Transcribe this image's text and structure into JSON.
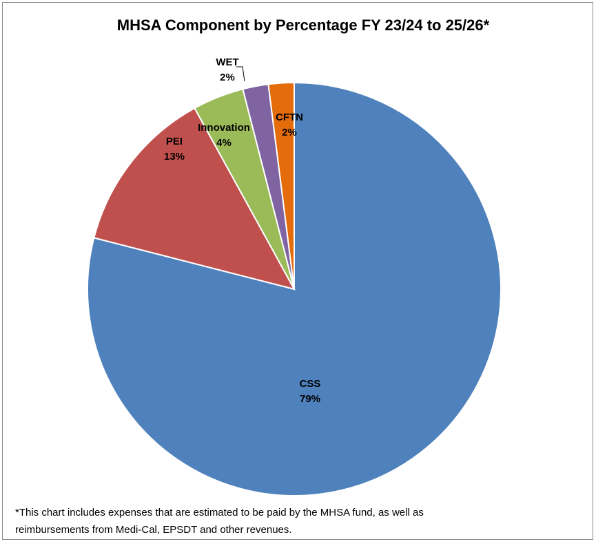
{
  "chart_data": {
    "type": "pie",
    "title": "MHSA Component by Percentage FY 23/24 to 25/26*",
    "categories": [
      "CSS",
      "PEI",
      "Innovation",
      "WET",
      "CFTN"
    ],
    "values": [
      79,
      13,
      4,
      2,
      2
    ],
    "value_labels": [
      "79%",
      "13%",
      "4%",
      "2%",
      "2%"
    ],
    "colors": [
      "#4f81bd",
      "#c0504d",
      "#9bbb59",
      "#8064a2",
      "#e46c0a"
    ],
    "footnote": [
      "*This chart includes expenses that are estimated to be paid by the MHSA fund, as well as",
      "reimbursements from Medi-Cal, EPSDT and other revenues."
    ]
  }
}
